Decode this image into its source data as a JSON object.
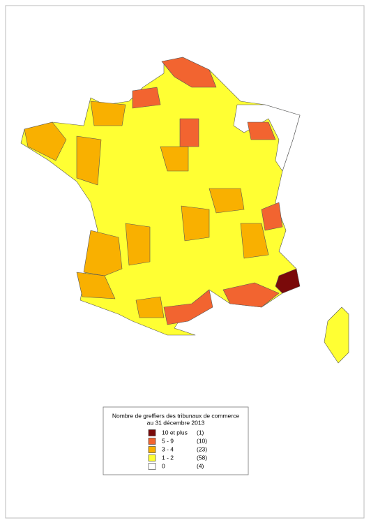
{
  "legend": {
    "title_lines": [
      "Nombre de greffiers des tribunaux de commerce",
      "au 31 décembre 2013"
    ],
    "classes": [
      {
        "label": "10 et plus",
        "count": "(1)",
        "color": "#7a0a0a"
      },
      {
        "label": "5 - 9",
        "count": "(10)",
        "color": "#f26430"
      },
      {
        "label": "3 - 4",
        "count": "(23)",
        "color": "#f9b000"
      },
      {
        "label": "1 - 2",
        "count": "(58)",
        "color": "#ffff33"
      },
      {
        "label": "0",
        "count": "(4)",
        "color": "#ffffff"
      }
    ]
  }
}
